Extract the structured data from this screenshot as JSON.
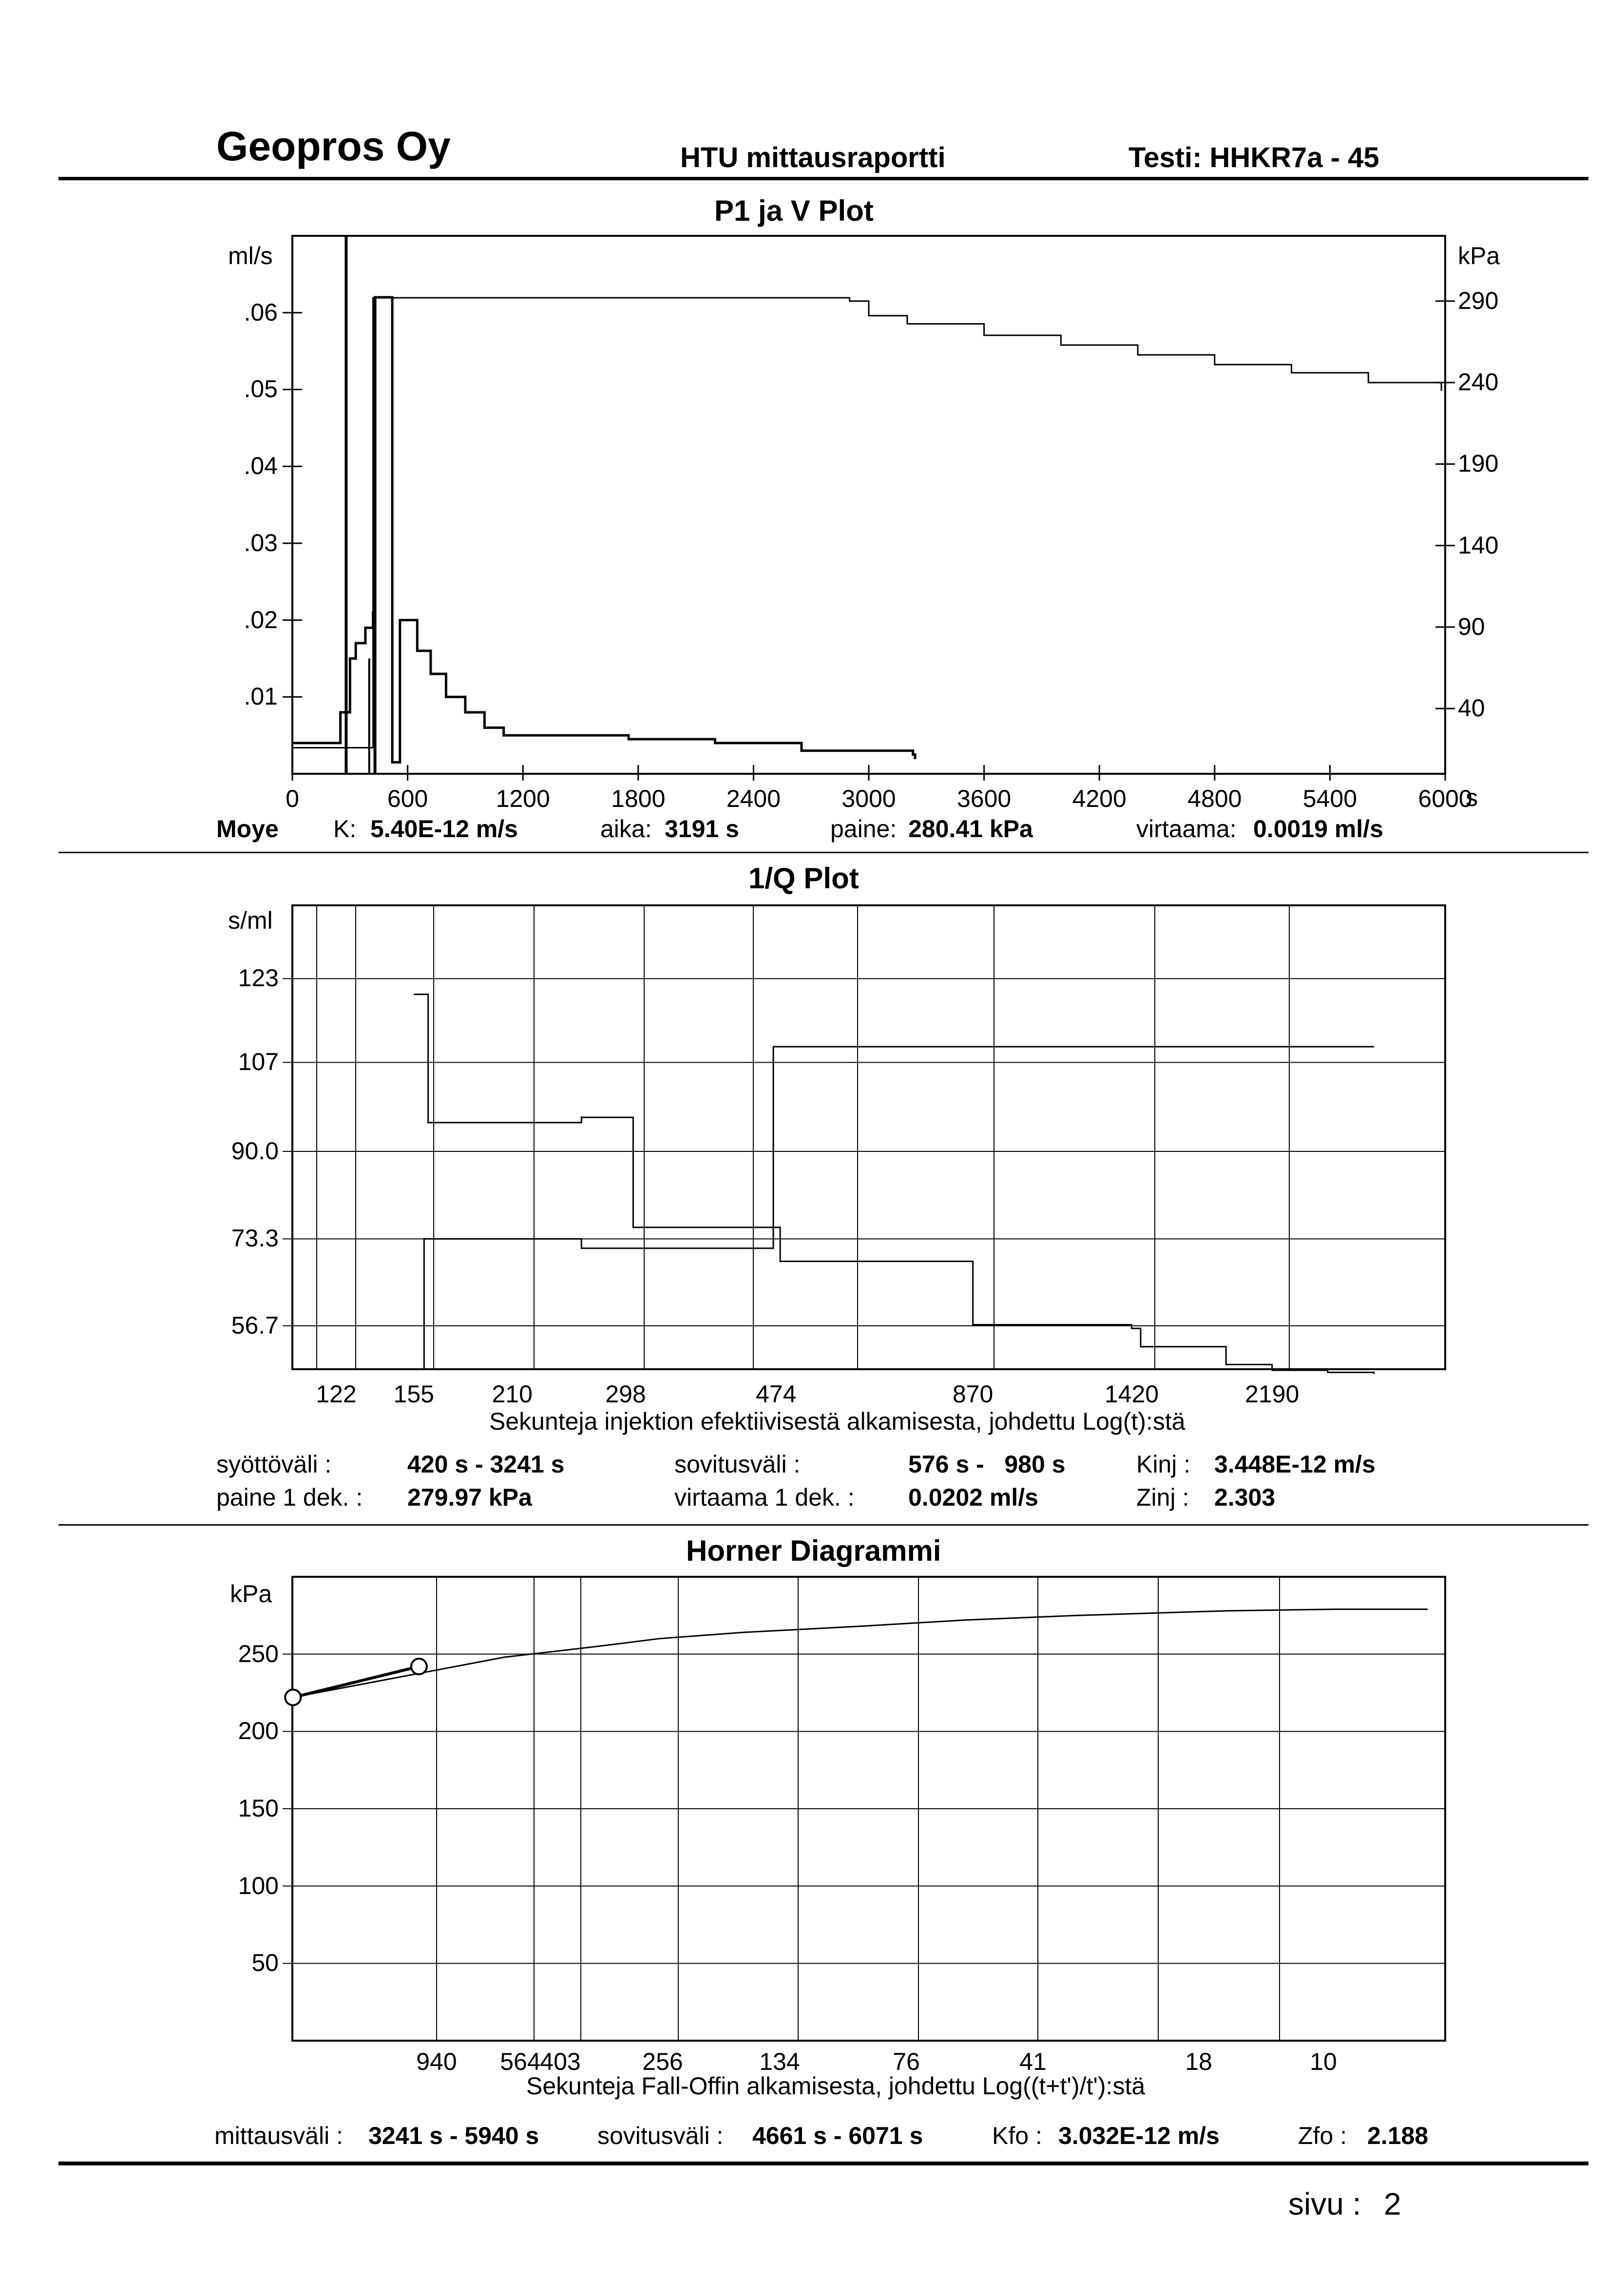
{
  "header": {
    "company": "Geopros Oy",
    "report_title": "HTU mittausraportti",
    "test_id": "Testi: HHKR7a - 45"
  },
  "plot1": {
    "title": "P1 ja V Plot",
    "left_unit": "ml/s",
    "right_unit": "kPa",
    "x_unit": "s",
    "left_ticks": [
      ".06",
      ".05",
      ".04",
      ".03",
      ".02",
      ".01"
    ],
    "right_ticks": [
      "290",
      "240",
      "190",
      "140",
      "90",
      "40"
    ],
    "x_ticks": [
      "0",
      "600",
      "1200",
      "1800",
      "2400",
      "3000",
      "3600",
      "4200",
      "4800",
      "5400",
      "6000"
    ],
    "summary": {
      "method": "Moye",
      "k_label": "K:",
      "k_value": "5.40E-12 m/s",
      "time_label": "aika:",
      "time_value": "3191 s",
      "pressure_label": "paine:",
      "pressure_value": "280.41 kPa",
      "flow_label": "virtaama:",
      "flow_value": "0.0019 ml/s"
    }
  },
  "plot2": {
    "title": "1/Q Plot",
    "y_unit": "s/ml",
    "y_ticks": [
      "123",
      "107",
      "90.0",
      "73.3",
      "56.7"
    ],
    "x_ticks": [
      "122",
      "155",
      "210",
      "298",
      "474",
      "870",
      "1420",
      "2190"
    ],
    "xlabel": "Sekunteja injektion efektiivisestä alkamisesta, johdettu Log(t):stä",
    "params": {
      "feed_label": "syöttöväli :",
      "feed_value": "420 s - 3241 s",
      "fit_label": "sovitusväli :",
      "fit_value": "576 s -   980 s",
      "kinj_label": "Kinj :",
      "kinj_value": "3.448E-12 m/s",
      "p1_label": "paine 1 dek. :",
      "p1_value": "279.97 kPa",
      "q1_label": "virtaama 1 dek. :",
      "q1_value": "0.0202 ml/s",
      "zinj_label": "Zinj :",
      "zinj_value": "2.303"
    }
  },
  "plot3": {
    "title": "Horner Diagrammi",
    "y_unit": "kPa",
    "y_ticks": [
      "250",
      "200",
      "150",
      "100",
      "50"
    ],
    "x_ticks": [
      "940",
      "564",
      "403",
      "256",
      "134",
      "76",
      "41",
      "18",
      "10"
    ],
    "xlabel": "Sekunteja Fall-Offin alkamisesta, johdettu Log((t+t')/t'):stä",
    "params": {
      "range_label": "mittausväli :",
      "range_value": "3241 s - 5940 s",
      "fit_label": "sovitusväli :",
      "fit_value": "4661 s - 6071 s",
      "kfo_label": "Kfo :",
      "kfo_value": "3.032E-12 m/s",
      "zfo_label": "Zfo :",
      "zfo_value": "2.188"
    }
  },
  "footer": {
    "page_label": "sivu :",
    "page_number": "2"
  },
  "chart_data": [
    {
      "type": "line",
      "title": "P1 ja V Plot",
      "x_unit": "s",
      "xlim": [
        0,
        6000
      ],
      "y_left_unit": "ml/s",
      "y_left_lim": [
        0,
        0.07
      ],
      "y_right_unit": "kPa",
      "y_right_lim": [
        0,
        330
      ],
      "grid": false,
      "series": [
        {
          "axis": "right",
          "x": [
            0,
            230,
            420,
            480,
            2880,
            2900,
            3000,
            3200,
            3600,
            4000,
            4400,
            4800,
            5200,
            5600,
            5980
          ],
          "values": [
            16,
            16,
            292,
            292,
            292,
            290,
            281,
            276,
            269,
            263,
            257,
            251,
            246,
            240,
            235
          ]
        },
        {
          "axis": "left",
          "x": [
            0,
            30,
            230,
            250,
            300,
            330,
            380,
            420,
            430,
            520,
            560,
            650,
            720,
            800,
            900,
            1000,
            1100,
            1400,
            1750,
            2200,
            2650,
            2850,
            3230,
            3241
          ],
          "values": [
            0.004,
            0.004,
            0.004,
            0.008,
            0.015,
            0.017,
            0.019,
            0.021,
            0.062,
            0.0015,
            0.02,
            0.016,
            0.013,
            0.01,
            0.008,
            0.006,
            0.005,
            0.005,
            0.0045,
            0.004,
            0.003,
            0.003,
            0.0025,
            0.0019
          ]
        }
      ]
    },
    {
      "type": "line",
      "title": "1/Q Plot",
      "y_unit": "s/ml",
      "ylim": [
        48.4,
        137
      ],
      "xlabel": "Sekunteja injektion efektiivisestä alkamisesta, johdettu Log(t):stä",
      "x_scale": "log",
      "grid": true,
      "series": [
        {
          "x": [
            122,
            155,
            160,
            205,
            210,
            260,
            290,
            298,
            470,
            474,
            560,
            870,
            1420,
            1900,
            2190,
            3000
          ],
          "values": [
            48.4,
            48.4,
            73.3,
            73.3,
            73.3,
            71.5,
            71.5,
            71.5,
            110,
            110,
            110,
            110,
            110,
            110,
            110,
            110
          ]
        },
        {
          "x": [
            155,
            162,
            210,
            260,
            290,
            298,
            305,
            474,
            480,
            560,
            870,
            1420,
            1460,
            1900,
            2190,
            2600,
            3000
          ],
          "values": [
            120,
            95.5,
            95.5,
            96.5,
            96.5,
            96.5,
            75.5,
            75.5,
            69,
            69,
            56.9,
            56.2,
            52.7,
            49.3,
            48.2,
            47.8,
            47.5
          ]
        }
      ]
    },
    {
      "type": "line",
      "title": "Horner Diagrammi",
      "y_unit": "kPa",
      "ylim": [
        0,
        300
      ],
      "xlabel": "Sekunteja Fall-Offin alkamisesta, johdettu Log((t+t')/t'):stä",
      "x_scale": "log (reversed Horner time)",
      "grid": true,
      "series": [
        {
          "name": "data",
          "x": [
            3000,
            940,
            564,
            403,
            256,
            134,
            76,
            41,
            18,
            10,
            6
          ],
          "values": [
            222,
            248,
            255,
            260,
            264,
            268,
            272,
            275,
            278,
            279,
            279
          ]
        },
        {
          "name": "fit",
          "x": [
            2990,
            1500
          ],
          "values": [
            222,
            242
          ]
        }
      ]
    }
  ]
}
